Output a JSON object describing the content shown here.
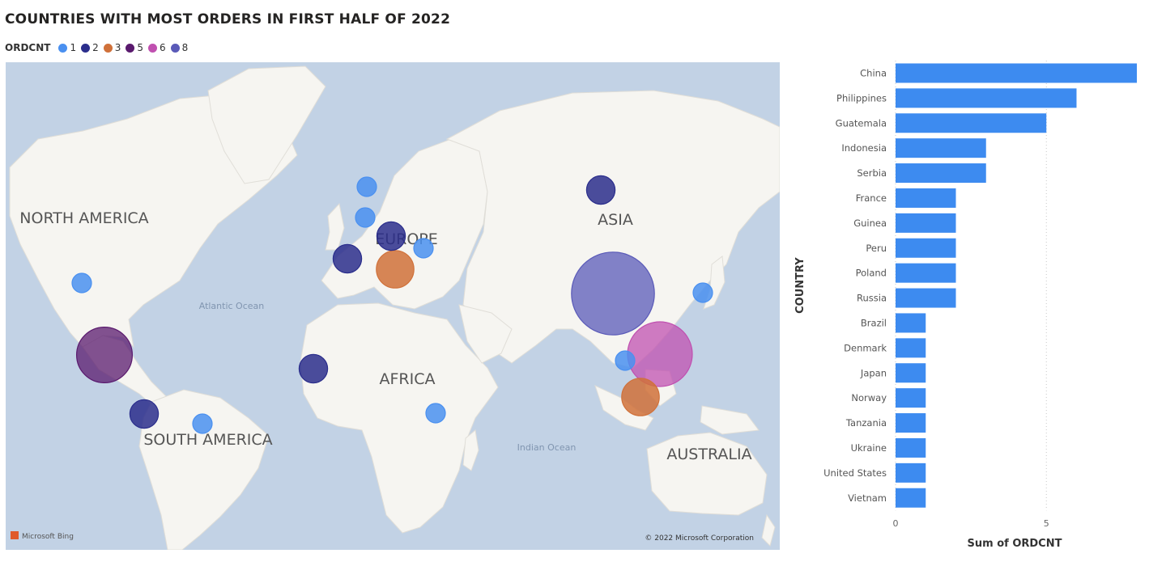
{
  "header": {
    "title": "COUNTRIES WITH MOST ORDERS IN FIRST HALF OF 2022"
  },
  "legend": {
    "title": "ORDCNT",
    "items": [
      {
        "label": "1",
        "color": "#4a90f0"
      },
      {
        "label": "2",
        "color": "#2b2e8c"
      },
      {
        "label": "3",
        "color": "#d0713a"
      },
      {
        "label": "5",
        "color": "#5a1a6e"
      },
      {
        "label": "6",
        "color": "#c050b0"
      },
      {
        "label": "8",
        "color": "#5a5ab8"
      }
    ]
  },
  "map": {
    "ocean_color": "#c2d2e5",
    "land_color": "#f6f5f1",
    "region_labels": [
      "NORTH AMERICA",
      "SOUTH AMERICA",
      "EUROPE",
      "AFRICA",
      "ASIA",
      "AUSTRALIA"
    ],
    "ocean_labels": [
      "Atlantic Ocean",
      "Indian Ocean"
    ],
    "attribution_left": "Microsoft Bing",
    "attribution_right": "© 2022 Microsoft Corporation"
  },
  "chart_data": [
    {
      "type": "scatter",
      "title": "COUNTRIES WITH MOST ORDERS IN FIRST HALF OF 2022",
      "size_field": "ORDCNT",
      "points": [
        {
          "country": "China",
          "value": 8
        },
        {
          "country": "Philippines",
          "value": 6
        },
        {
          "country": "Guatemala",
          "value": 5
        },
        {
          "country": "Indonesia",
          "value": 3
        },
        {
          "country": "Serbia",
          "value": 3
        },
        {
          "country": "France",
          "value": 2
        },
        {
          "country": "Guinea",
          "value": 2
        },
        {
          "country": "Peru",
          "value": 2
        },
        {
          "country": "Poland",
          "value": 2
        },
        {
          "country": "Russia",
          "value": 2
        },
        {
          "country": "Brazil",
          "value": 1
        },
        {
          "country": "Denmark",
          "value": 1
        },
        {
          "country": "Japan",
          "value": 1
        },
        {
          "country": "Norway",
          "value": 1
        },
        {
          "country": "Tanzania",
          "value": 1
        },
        {
          "country": "Ukraine",
          "value": 1
        },
        {
          "country": "United States",
          "value": 1
        },
        {
          "country": "Vietnam",
          "value": 1
        }
      ]
    },
    {
      "type": "bar",
      "orientation": "horizontal",
      "categories": [
        "China",
        "Philippines",
        "Guatemala",
        "Indonesia",
        "Serbia",
        "France",
        "Guinea",
        "Peru",
        "Poland",
        "Russia",
        "Brazil",
        "Denmark",
        "Japan",
        "Norway",
        "Tanzania",
        "Ukraine",
        "United States",
        "Vietnam"
      ],
      "values": [
        8,
        6,
        5,
        3,
        3,
        2,
        2,
        2,
        2,
        2,
        1,
        1,
        1,
        1,
        1,
        1,
        1,
        1
      ],
      "xlabel": "Sum of ORDCNT",
      "ylabel": "COUNTRY",
      "xlim": [
        0,
        8
      ],
      "xticks": [
        0,
        5
      ],
      "bar_color": "#3d8bf0",
      "grid": true
    }
  ]
}
